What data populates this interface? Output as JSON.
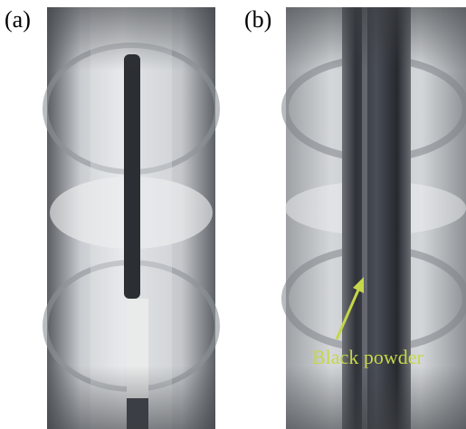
{
  "panels": [
    {
      "label": "(a)"
    },
    {
      "label": "(b)",
      "annotation": "Black powder"
    }
  ]
}
